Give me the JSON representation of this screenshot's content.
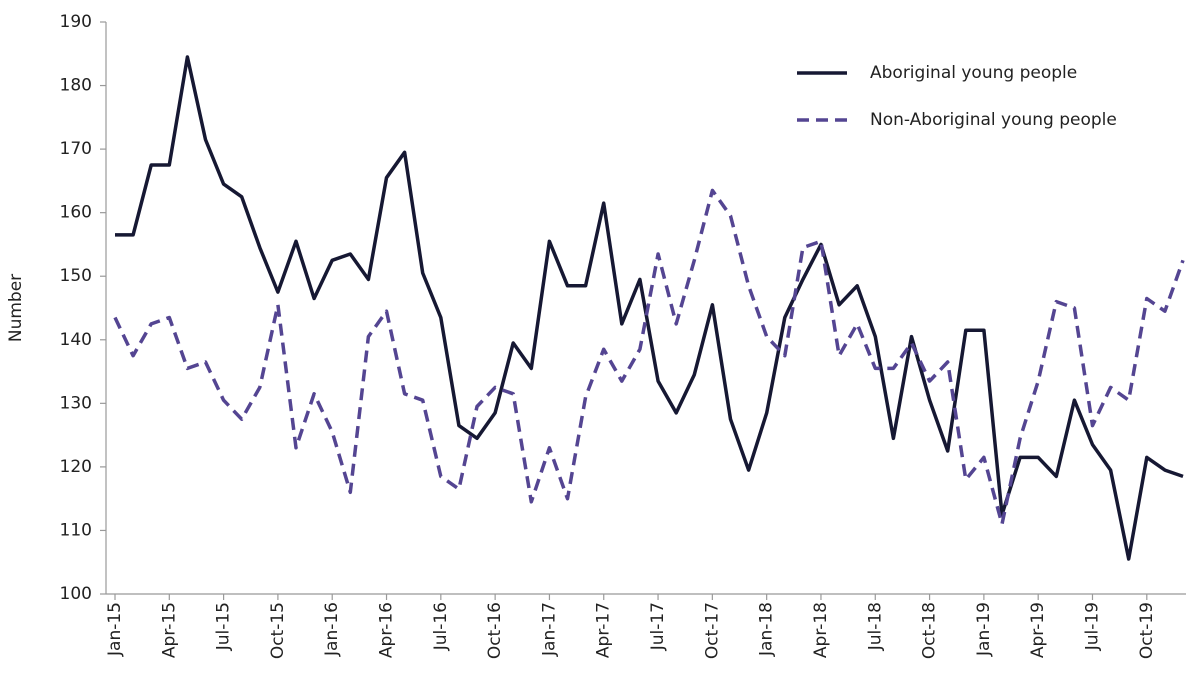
{
  "chart_data": {
    "type": "line",
    "y_label": "Number",
    "categories": [
      "Jan-15",
      null,
      null,
      "Apr-15",
      null,
      null,
      "Jul-15",
      null,
      null,
      "Oct-15",
      null,
      null,
      "Jan-16",
      null,
      null,
      "Apr-16",
      null,
      null,
      "Jul-16",
      null,
      null,
      "Oct-16",
      null,
      null,
      "Jan-17",
      null,
      null,
      "Apr-17",
      null,
      null,
      "Jul-17",
      null,
      null,
      "Oct-17",
      null,
      null,
      "Jan-18",
      null,
      null,
      "Apr-18",
      null,
      null,
      "Jul-18",
      null,
      null,
      "Oct-18",
      null,
      null,
      "Jan-19",
      null,
      null,
      "Apr-19",
      null,
      null,
      "Jul-19",
      null,
      null,
      "Oct-19",
      null,
      null
    ],
    "series": [
      {
        "name": "Aboriginal young people",
        "color": "#161833",
        "dash": false,
        "values": [
          156.5,
          156.5,
          167.5,
          167.5,
          184.5,
          171.5,
          164.5,
          162.5,
          154.5,
          147.5,
          155.5,
          146.5,
          152.5,
          153.5,
          149.5,
          165.5,
          169.5,
          150.5,
          143.5,
          126.5,
          124.5,
          128.5,
          139.5,
          135.5,
          155.5,
          148.5,
          148.5,
          161.5,
          142.5,
          149.5,
          133.5,
          128.5,
          134.5,
          145.5,
          127.5,
          119.5,
          128.5,
          143.5,
          149.5,
          155,
          145.5,
          148.5,
          140.5,
          124.5,
          140.5,
          130.5,
          122.5,
          141.5,
          141.5,
          112.5,
          121.5,
          121.5,
          118.5,
          130.5,
          123.5,
          119.5,
          105.5,
          121.5,
          119.5,
          118.5
        ]
      },
      {
        "name": "Non-Aboriginal young people",
        "color": "#544592",
        "dash": true,
        "values": [
          143.5,
          137.5,
          142.5,
          143.5,
          135.5,
          136.5,
          130.5,
          127.5,
          132.5,
          145.5,
          123,
          131.5,
          125.5,
          116,
          140.5,
          144.5,
          131.5,
          130.5,
          118.5,
          116.5,
          129.5,
          132.5,
          131.5,
          114.5,
          123,
          115,
          131,
          138.5,
          133.5,
          138.5,
          153.5,
          142.5,
          152.5,
          163.5,
          159.5,
          148.5,
          140.5,
          137.5,
          154.5,
          155.5,
          137.5,
          142.5,
          135.5,
          135.5,
          139.5,
          133.5,
          136.5,
          118,
          121.5,
          111,
          124.5,
          133.5,
          146,
          145,
          126.5,
          132.5,
          130.5,
          146.5,
          144.5,
          152.5
        ]
      }
    ],
    "ylim": [
      100,
      190
    ],
    "yticks": [
      100,
      110,
      120,
      130,
      140,
      150,
      160,
      170,
      180,
      190
    ],
    "grid": false,
    "legend": "top-right"
  }
}
